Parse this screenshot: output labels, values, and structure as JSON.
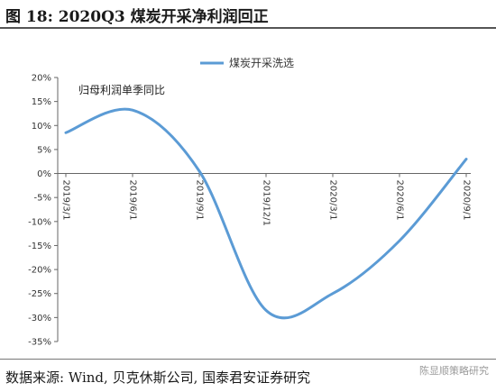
{
  "header": {
    "title": "图 18: 2020Q3 煤炭开采净利润回正"
  },
  "footer": {
    "source": "数据来源: Wind, 贝克休斯公司, 国泰君安证券研究",
    "watermark": "陈显顺策略研究"
  },
  "chart_data": {
    "type": "line",
    "annotation": "归母利润单季同比",
    "x": [
      "2019/3/1",
      "2019/6/1",
      "2019/9/1",
      "2019/12/1",
      "2020/3/1",
      "2020/6/1",
      "2020/9/1"
    ],
    "series": [
      {
        "name": "煤炭开采洗选",
        "values": [
          8.5,
          13.2,
          0.5,
          -28.5,
          -25,
          -14,
          3
        ],
        "color": "#5b9bd5"
      }
    ],
    "ylim": [
      -35,
      20
    ],
    "yticks": [
      20,
      15,
      10,
      5,
      0,
      -5,
      -10,
      -15,
      -20,
      -25,
      -30,
      -35
    ],
    "ytick_format": "percent",
    "legend_position": "top-right",
    "grid": false,
    "xlabel": "",
    "ylabel": ""
  }
}
